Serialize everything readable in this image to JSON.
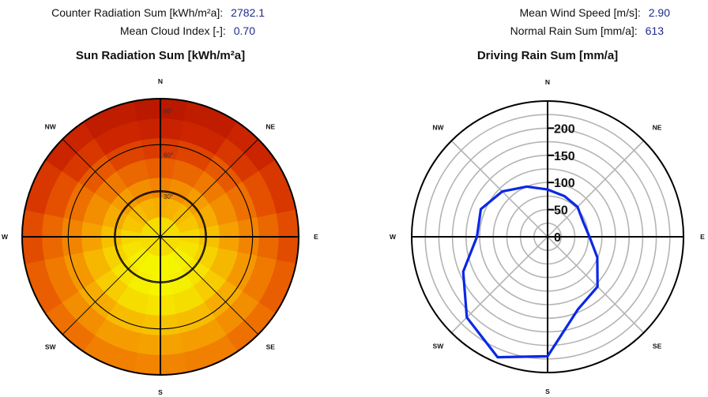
{
  "stats": {
    "counter_radiation_label": "Counter Radiation Sum [kWh/m²a]:",
    "counter_radiation_value": "2782.1",
    "cloud_index_label": "Mean Cloud Index [-]:",
    "cloud_index_value": "0.70",
    "wind_speed_label": "Mean Wind Speed [m/s]:",
    "wind_speed_value": "2.90",
    "normal_rain_label": "Normal Rain Sum [mm/a]:",
    "normal_rain_value": "613"
  },
  "colors": {
    "value_text": "#1f2a8c",
    "rain_line": "#0a28e6",
    "grid_gray": "#b4b4b4"
  },
  "chart_data": [
    {
      "type": "heatmap",
      "projection": "polar",
      "title": "Sun Radiation Sum [kWh/m²a]",
      "directions": [
        "N",
        "NE",
        "E",
        "SE",
        "S",
        "SW",
        "W",
        "NW"
      ],
      "radial_ticks": [
        "30°",
        "60°",
        "90°"
      ],
      "radial_axis": "zenith angle (inner = horizontal, outer = vertical)",
      "color_scale": [
        "#f5f500",
        "#f7c400",
        "#f59a00",
        "#ee7000",
        "#e24a00",
        "#d02800",
        "#bb1800"
      ],
      "rings": [
        [
          0.08,
          0.08,
          0.08,
          0.08,
          0.08,
          0.08,
          0.08,
          0.08,
          0.08,
          0.08,
          0.08,
          0.08,
          0.08,
          0.08,
          0.08,
          0.08
        ],
        [
          0.26,
          0.24,
          0.2,
          0.16,
          0.1,
          0.06,
          0.02,
          0.0,
          0.0,
          0.0,
          0.02,
          0.06,
          0.1,
          0.16,
          0.2,
          0.24
        ],
        [
          0.42,
          0.38,
          0.32,
          0.26,
          0.18,
          0.12,
          0.06,
          0.02,
          0.0,
          0.02,
          0.06,
          0.12,
          0.18,
          0.26,
          0.32,
          0.38
        ],
        [
          0.58,
          0.54,
          0.46,
          0.38,
          0.3,
          0.22,
          0.14,
          0.08,
          0.06,
          0.08,
          0.14,
          0.22,
          0.3,
          0.38,
          0.46,
          0.54
        ],
        [
          0.74,
          0.7,
          0.6,
          0.5,
          0.42,
          0.34,
          0.26,
          0.2,
          0.18,
          0.2,
          0.26,
          0.34,
          0.42,
          0.5,
          0.6,
          0.7
        ],
        [
          0.9,
          0.86,
          0.76,
          0.64,
          0.54,
          0.46,
          0.38,
          0.32,
          0.3,
          0.32,
          0.38,
          0.46,
          0.54,
          0.64,
          0.76,
          0.86
        ],
        [
          1.0,
          0.96,
          0.88,
          0.76,
          0.66,
          0.58,
          0.5,
          0.44,
          0.42,
          0.44,
          0.5,
          0.58,
          0.66,
          0.76,
          0.88,
          0.96
        ]
      ]
    },
    {
      "type": "line",
      "projection": "polar",
      "title": "Driving Rain Sum [mm/a]",
      "directions": [
        "N",
        "NE",
        "E",
        "SE",
        "S",
        "SW",
        "W",
        "NW"
      ],
      "radial_ticks": [
        0,
        50,
        100,
        150,
        200
      ],
      "rmax": 250,
      "grid_rings": [
        0,
        25,
        50,
        75,
        100,
        125,
        150,
        175,
        200,
        225
      ],
      "series": [
        {
          "azimuth_deg": [
            0,
            22.5,
            45,
            67.5,
            90,
            112.5,
            135,
            157.5,
            180,
            202.5,
            225,
            247.5,
            270,
            292.5,
            315,
            337.5
          ],
          "values": [
            87,
            81,
            78,
            71,
            77,
            99,
            130,
            145,
            220,
            240,
            210,
            168,
            130,
            133,
            118,
            100
          ]
        }
      ]
    }
  ]
}
